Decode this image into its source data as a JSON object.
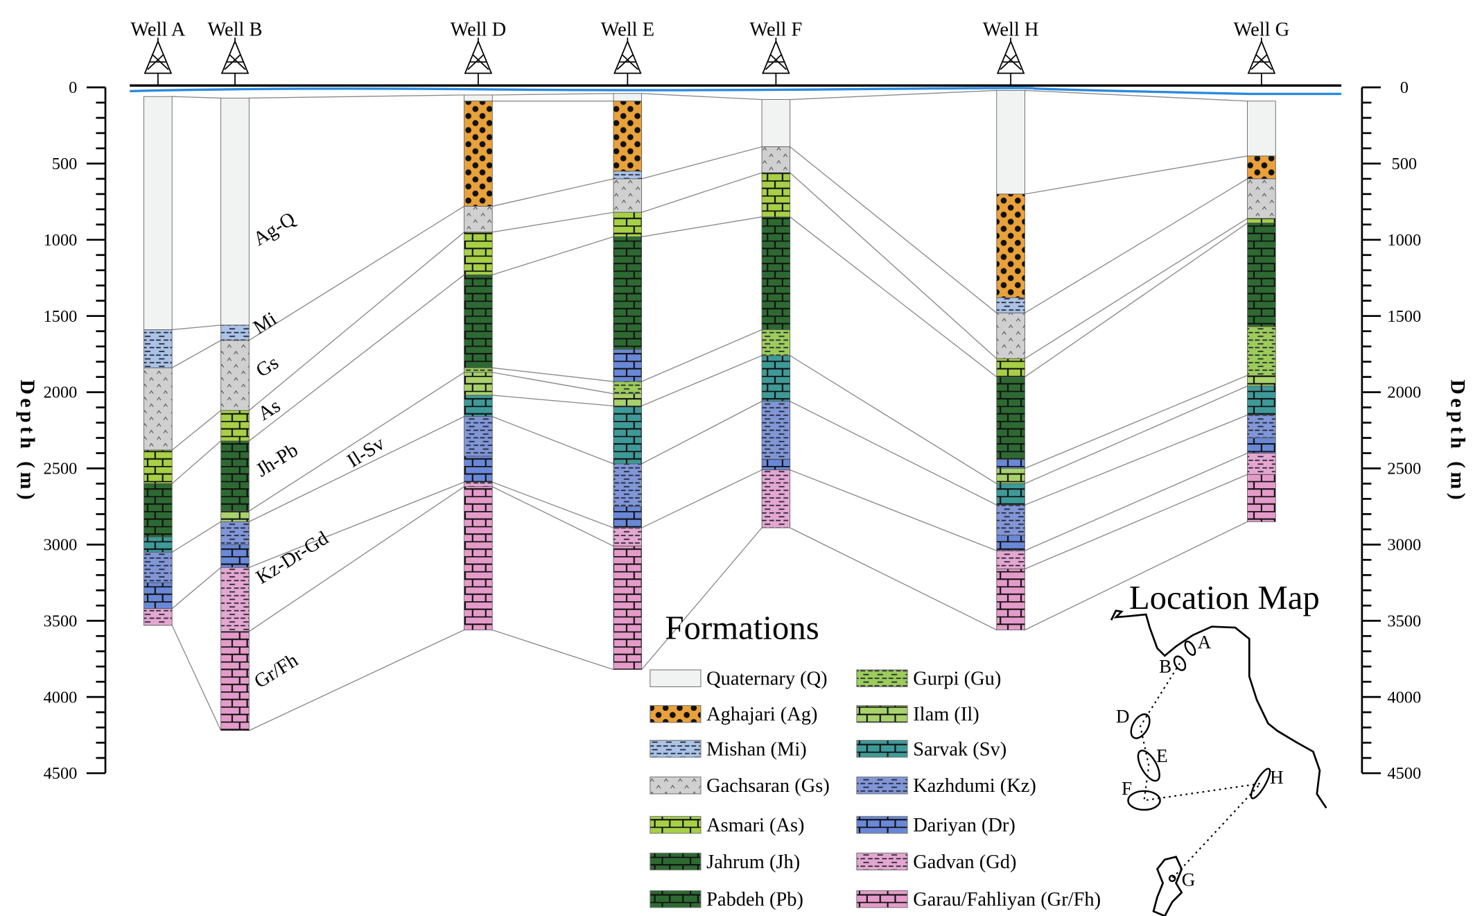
{
  "axis": {
    "label": "Depth (m)",
    "ticks": [
      0,
      500,
      1000,
      1500,
      2000,
      2500,
      3000,
      3500,
      4000,
      4500
    ],
    "max": 4500
  },
  "formations": {
    "Q": {
      "name": "Quaternary (Q)",
      "color": "#f1f2f2",
      "pattern": "plain"
    },
    "Ag": {
      "name": "Aghajari (Ag)",
      "color": "#e9a13a",
      "pattern": "dots"
    },
    "Mi": {
      "name": "Mishan (Mi)",
      "color": "#aac3e6",
      "pattern": "dash"
    },
    "Gs": {
      "name": "Gachsaran (Gs)",
      "color": "#d0d0d0",
      "pattern": "caret"
    },
    "As": {
      "name": "Asmari (As)",
      "color": "#a7d046",
      "pattern": "brick"
    },
    "Jh": {
      "name": "Jahrum (Jh)",
      "color": "#2d6a32",
      "pattern": "brick"
    },
    "Pb": {
      "name": "Pabdeh (Pb)",
      "color": "#2d6a32",
      "pattern": "brick"
    },
    "Gu": {
      "name": "Gurpi (Gu)",
      "color": "#9ccc5a",
      "pattern": "dash"
    },
    "Il": {
      "name": "Ilam (Il)",
      "color": "#a9d26c",
      "pattern": "brick"
    },
    "Sv": {
      "name": "Sarvak (Sv)",
      "color": "#3e9a98",
      "pattern": "brick"
    },
    "Kz": {
      "name": "Kazhdumi (Kz)",
      "color": "#8096d6",
      "pattern": "dash"
    },
    "Dr": {
      "name": "Dariyan (Dr)",
      "color": "#6a88d8",
      "pattern": "brick"
    },
    "Gd": {
      "name": "Gadvan (Gd)",
      "color": "#e4a7d0",
      "pattern": "dash"
    },
    "Gr": {
      "name": "Garau/Fahliyan (Gr/Fh)",
      "color": "#e59bca",
      "pattern": "brick"
    }
  },
  "legend": {
    "title": "Formations",
    "columns": [
      [
        "Q",
        "Ag",
        "Mi",
        "Gs",
        "As",
        "Jh",
        "Pb"
      ],
      [
        "Gu",
        "Il",
        "Sv",
        "Kz",
        "Dr",
        "Gd",
        "Gr"
      ]
    ]
  },
  "wells": [
    {
      "name": "Well A",
      "layers": [
        [
          "Q",
          60,
          1590
        ],
        [
          "Mi",
          1590,
          1840
        ],
        [
          "Gs",
          1840,
          2380
        ],
        [
          "As",
          2380,
          2600
        ],
        [
          "Jh",
          2600,
          2950
        ],
        [
          "Sv",
          2950,
          3050
        ],
        [
          "Kz",
          3050,
          3250
        ],
        [
          "Dr",
          3250,
          3420
        ],
        [
          "Gd",
          3420,
          3530
        ]
      ]
    },
    {
      "name": "Well B",
      "layers": [
        [
          "Q",
          70,
          1560
        ],
        [
          "Mi",
          1560,
          1660
        ],
        [
          "Gs",
          1660,
          2120
        ],
        [
          "As",
          2120,
          2320
        ],
        [
          "Jh",
          2320,
          2780
        ],
        [
          "Il",
          2780,
          2850
        ],
        [
          "Kz",
          2850,
          3000
        ],
        [
          "Dr",
          3000,
          3150
        ],
        [
          "Gd",
          3150,
          3570
        ],
        [
          "Gr",
          3570,
          4220
        ]
      ]
    },
    {
      "name": "Well D",
      "layers": [
        [
          "Q",
          50,
          90
        ],
        [
          "Ag",
          90,
          780
        ],
        [
          "Gs",
          780,
          950
        ],
        [
          "As",
          950,
          1230
        ],
        [
          "Jh",
          1230,
          1840
        ],
        [
          "Gu",
          1840,
          1870
        ],
        [
          "Il",
          1870,
          2020
        ],
        [
          "Sv",
          2020,
          2160
        ],
        [
          "Kz",
          2160,
          2420
        ],
        [
          "Dr",
          2420,
          2590
        ],
        [
          "Gd",
          2590,
          2620
        ],
        [
          "Gr",
          2620,
          3560
        ]
      ]
    },
    {
      "name": "Well E",
      "layers": [
        [
          "Q",
          40,
          90
        ],
        [
          "Ag",
          90,
          550
        ],
        [
          "Mi",
          550,
          600
        ],
        [
          "Gs",
          600,
          820
        ],
        [
          "As",
          820,
          980
        ],
        [
          "Jh",
          980,
          1720
        ],
        [
          "Dr",
          1720,
          1930
        ],
        [
          "Gu",
          1930,
          2010
        ],
        [
          "Il",
          2010,
          2090
        ],
        [
          "Sv",
          2090,
          2470
        ],
        [
          "Kz",
          2470,
          2750
        ],
        [
          "Dr",
          2750,
          2890
        ],
        [
          "Gd",
          2890,
          3010
        ],
        [
          "Gr",
          3010,
          3820
        ]
      ]
    },
    {
      "name": "Well F",
      "layers": [
        [
          "Q",
          80,
          390
        ],
        [
          "Gs",
          390,
          560
        ],
        [
          "As",
          560,
          850
        ],
        [
          "Pb",
          850,
          1590
        ],
        [
          "Gu",
          1590,
          1760
        ],
        [
          "Sv",
          1760,
          2060
        ],
        [
          "Kz",
          2060,
          2440
        ],
        [
          "Dr",
          2440,
          2510
        ],
        [
          "Gd",
          2510,
          2890
        ]
      ]
    },
    {
      "name": "Well H",
      "layers": [
        [
          "Q",
          20,
          700
        ],
        [
          "Ag",
          700,
          1380
        ],
        [
          "Mi",
          1380,
          1480
        ],
        [
          "Gs",
          1480,
          1780
        ],
        [
          "As",
          1780,
          1900
        ],
        [
          "Jh",
          1900,
          2440
        ],
        [
          "Dr",
          2440,
          2500
        ],
        [
          "Il",
          2500,
          2600
        ],
        [
          "Sv",
          2600,
          2740
        ],
        [
          "Kz",
          2740,
          2940
        ],
        [
          "Dr",
          2940,
          3040
        ],
        [
          "Gd",
          3040,
          3160
        ],
        [
          "Gr",
          3160,
          3560
        ]
      ]
    },
    {
      "name": "Well G",
      "layers": [
        [
          "Q",
          90,
          450
        ],
        [
          "Ag",
          450,
          600
        ],
        [
          "Gs",
          600,
          860
        ],
        [
          "As",
          860,
          890
        ],
        [
          "Jh",
          890,
          1570
        ],
        [
          "Gu",
          1570,
          1890
        ],
        [
          "Il",
          1890,
          1960
        ],
        [
          "Sv",
          1960,
          2150
        ],
        [
          "Kz",
          2150,
          2300
        ],
        [
          "Dr",
          2300,
          2400
        ],
        [
          "Gd",
          2400,
          2540
        ],
        [
          "Gr",
          2540,
          2850
        ]
      ]
    }
  ],
  "section_labels": [
    "Ag-Q",
    "Mi",
    "Gs",
    "As",
    "Jh-Pb",
    "Il-Sv",
    "Kz-Dr-Gd",
    "Gr/Fh"
  ],
  "location_map": {
    "title": "Location Map",
    "wells": [
      "A",
      "B",
      "D",
      "E",
      "F",
      "H",
      "G"
    ]
  }
}
